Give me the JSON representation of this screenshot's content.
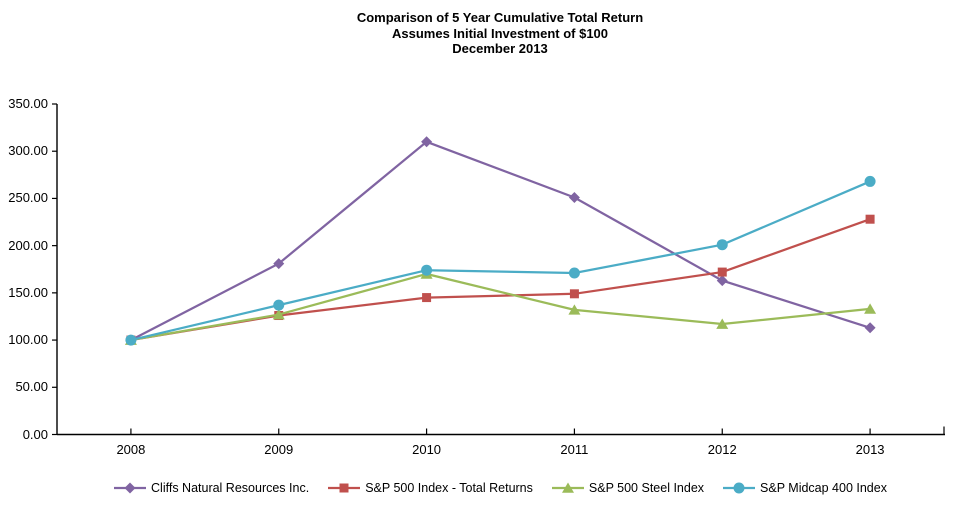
{
  "title": {
    "line1": "Comparison of 5 Year Cumulative Total Return",
    "line2": "Assumes  Initial Investment of $100",
    "line3": "December 2013"
  },
  "chart_data": {
    "type": "line",
    "x": [
      "2008",
      "2009",
      "2010",
      "2011",
      "2012",
      "2013"
    ],
    "series": [
      {
        "name": "Cliffs Natural Resources Inc.",
        "marker": "diamond",
        "color": "#8064A2",
        "values": [
          100,
          181,
          310,
          251,
          163,
          113
        ]
      },
      {
        "name": "S&P 500 Index - Total Returns",
        "marker": "square",
        "color": "#C0504D",
        "values": [
          100,
          126,
          145,
          149,
          172,
          228
        ]
      },
      {
        "name": "S&P 500 Steel Index",
        "marker": "triangle",
        "color": "#9BBB59",
        "values": [
          100,
          127,
          170,
          132,
          117,
          133
        ]
      },
      {
        "name": "S&P Midcap 400 Index",
        "marker": "circle",
        "color": "#4BACC6",
        "values": [
          100,
          137,
          174,
          171,
          201,
          268
        ]
      }
    ],
    "y_ticks": [
      "0.00",
      "50.00",
      "100.00",
      "150.00",
      "200.00",
      "250.00",
      "300.00",
      "350.00"
    ],
    "y_tick_values": [
      0,
      50,
      100,
      150,
      200,
      250,
      300,
      350
    ],
    "ylim": [
      0,
      350
    ],
    "grid": false,
    "axis_color": "#000000",
    "legend_position": "bottom"
  }
}
